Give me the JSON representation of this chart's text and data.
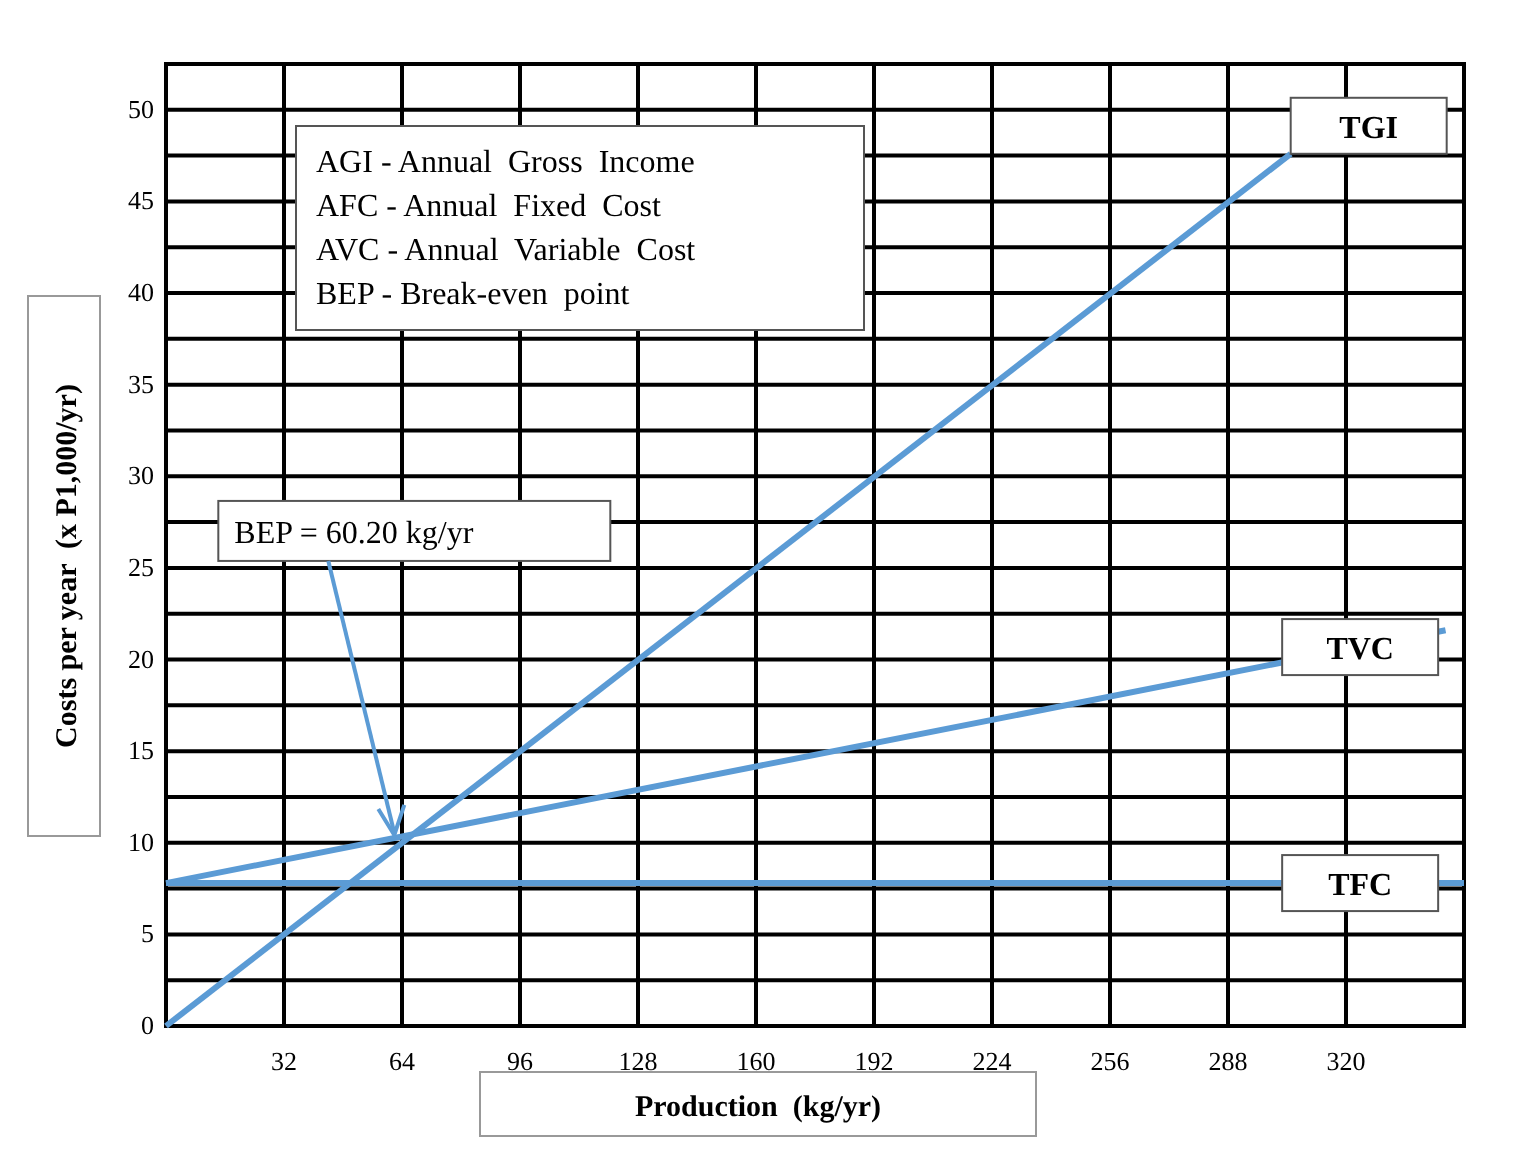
{
  "chart_data": {
    "type": "line",
    "xlabel": "Production  (kg/yr)",
    "ylabel": "Costs per year  (x P1,000/yr)",
    "xlim": [
      0,
      352
    ],
    "ylim": [
      0,
      52.5
    ],
    "xticks": [
      {
        "value": 0,
        "label": null
      },
      32,
      64,
      96,
      128,
      160,
      192,
      224,
      256,
      288,
      320
    ],
    "yticks": [
      0,
      {
        "value": 2.5,
        "label": null
      },
      5,
      {
        "value": 7.5,
        "label": null
      },
      10,
      {
        "value": 12.5,
        "label": null
      },
      15,
      {
        "value": 17.5,
        "label": null
      },
      20,
      {
        "value": 22.5,
        "label": null
      },
      25,
      {
        "value": 27.5,
        "label": null
      },
      30,
      {
        "value": 32.5,
        "label": null
      },
      35,
      {
        "value": 37.5,
        "label": null
      },
      40,
      {
        "value": 42.5,
        "label": null
      },
      45,
      {
        "value": 47.5,
        "label": null
      },
      50
    ],
    "grid": true,
    "marker": "none",
    "line_style": "solid",
    "series": [
      {
        "name": "TGI",
        "color": "#5b9bd5",
        "x": [
          0,
          305
        ],
        "values": [
          0,
          47.6
        ]
      },
      {
        "name": "TVC",
        "color": "#5b9bd5",
        "x": [
          0,
          347
        ],
        "values": [
          7.8,
          21.6
        ]
      },
      {
        "name": "TFC",
        "color": "#5b9bd5",
        "x": [
          0,
          352
        ],
        "values": [
          7.8,
          7.8
        ]
      }
    ],
    "annotations": [
      "AGI - Annual  Gross  Income",
      "AFC - Annual  Fixed  Cost",
      "AVC - Annual  Variable  Cost",
      "BEP - Break-even  point",
      {
        "text": "BEP = 60.20 kg/yr",
        "x": 63,
        "y": 10.1
      }
    ]
  }
}
